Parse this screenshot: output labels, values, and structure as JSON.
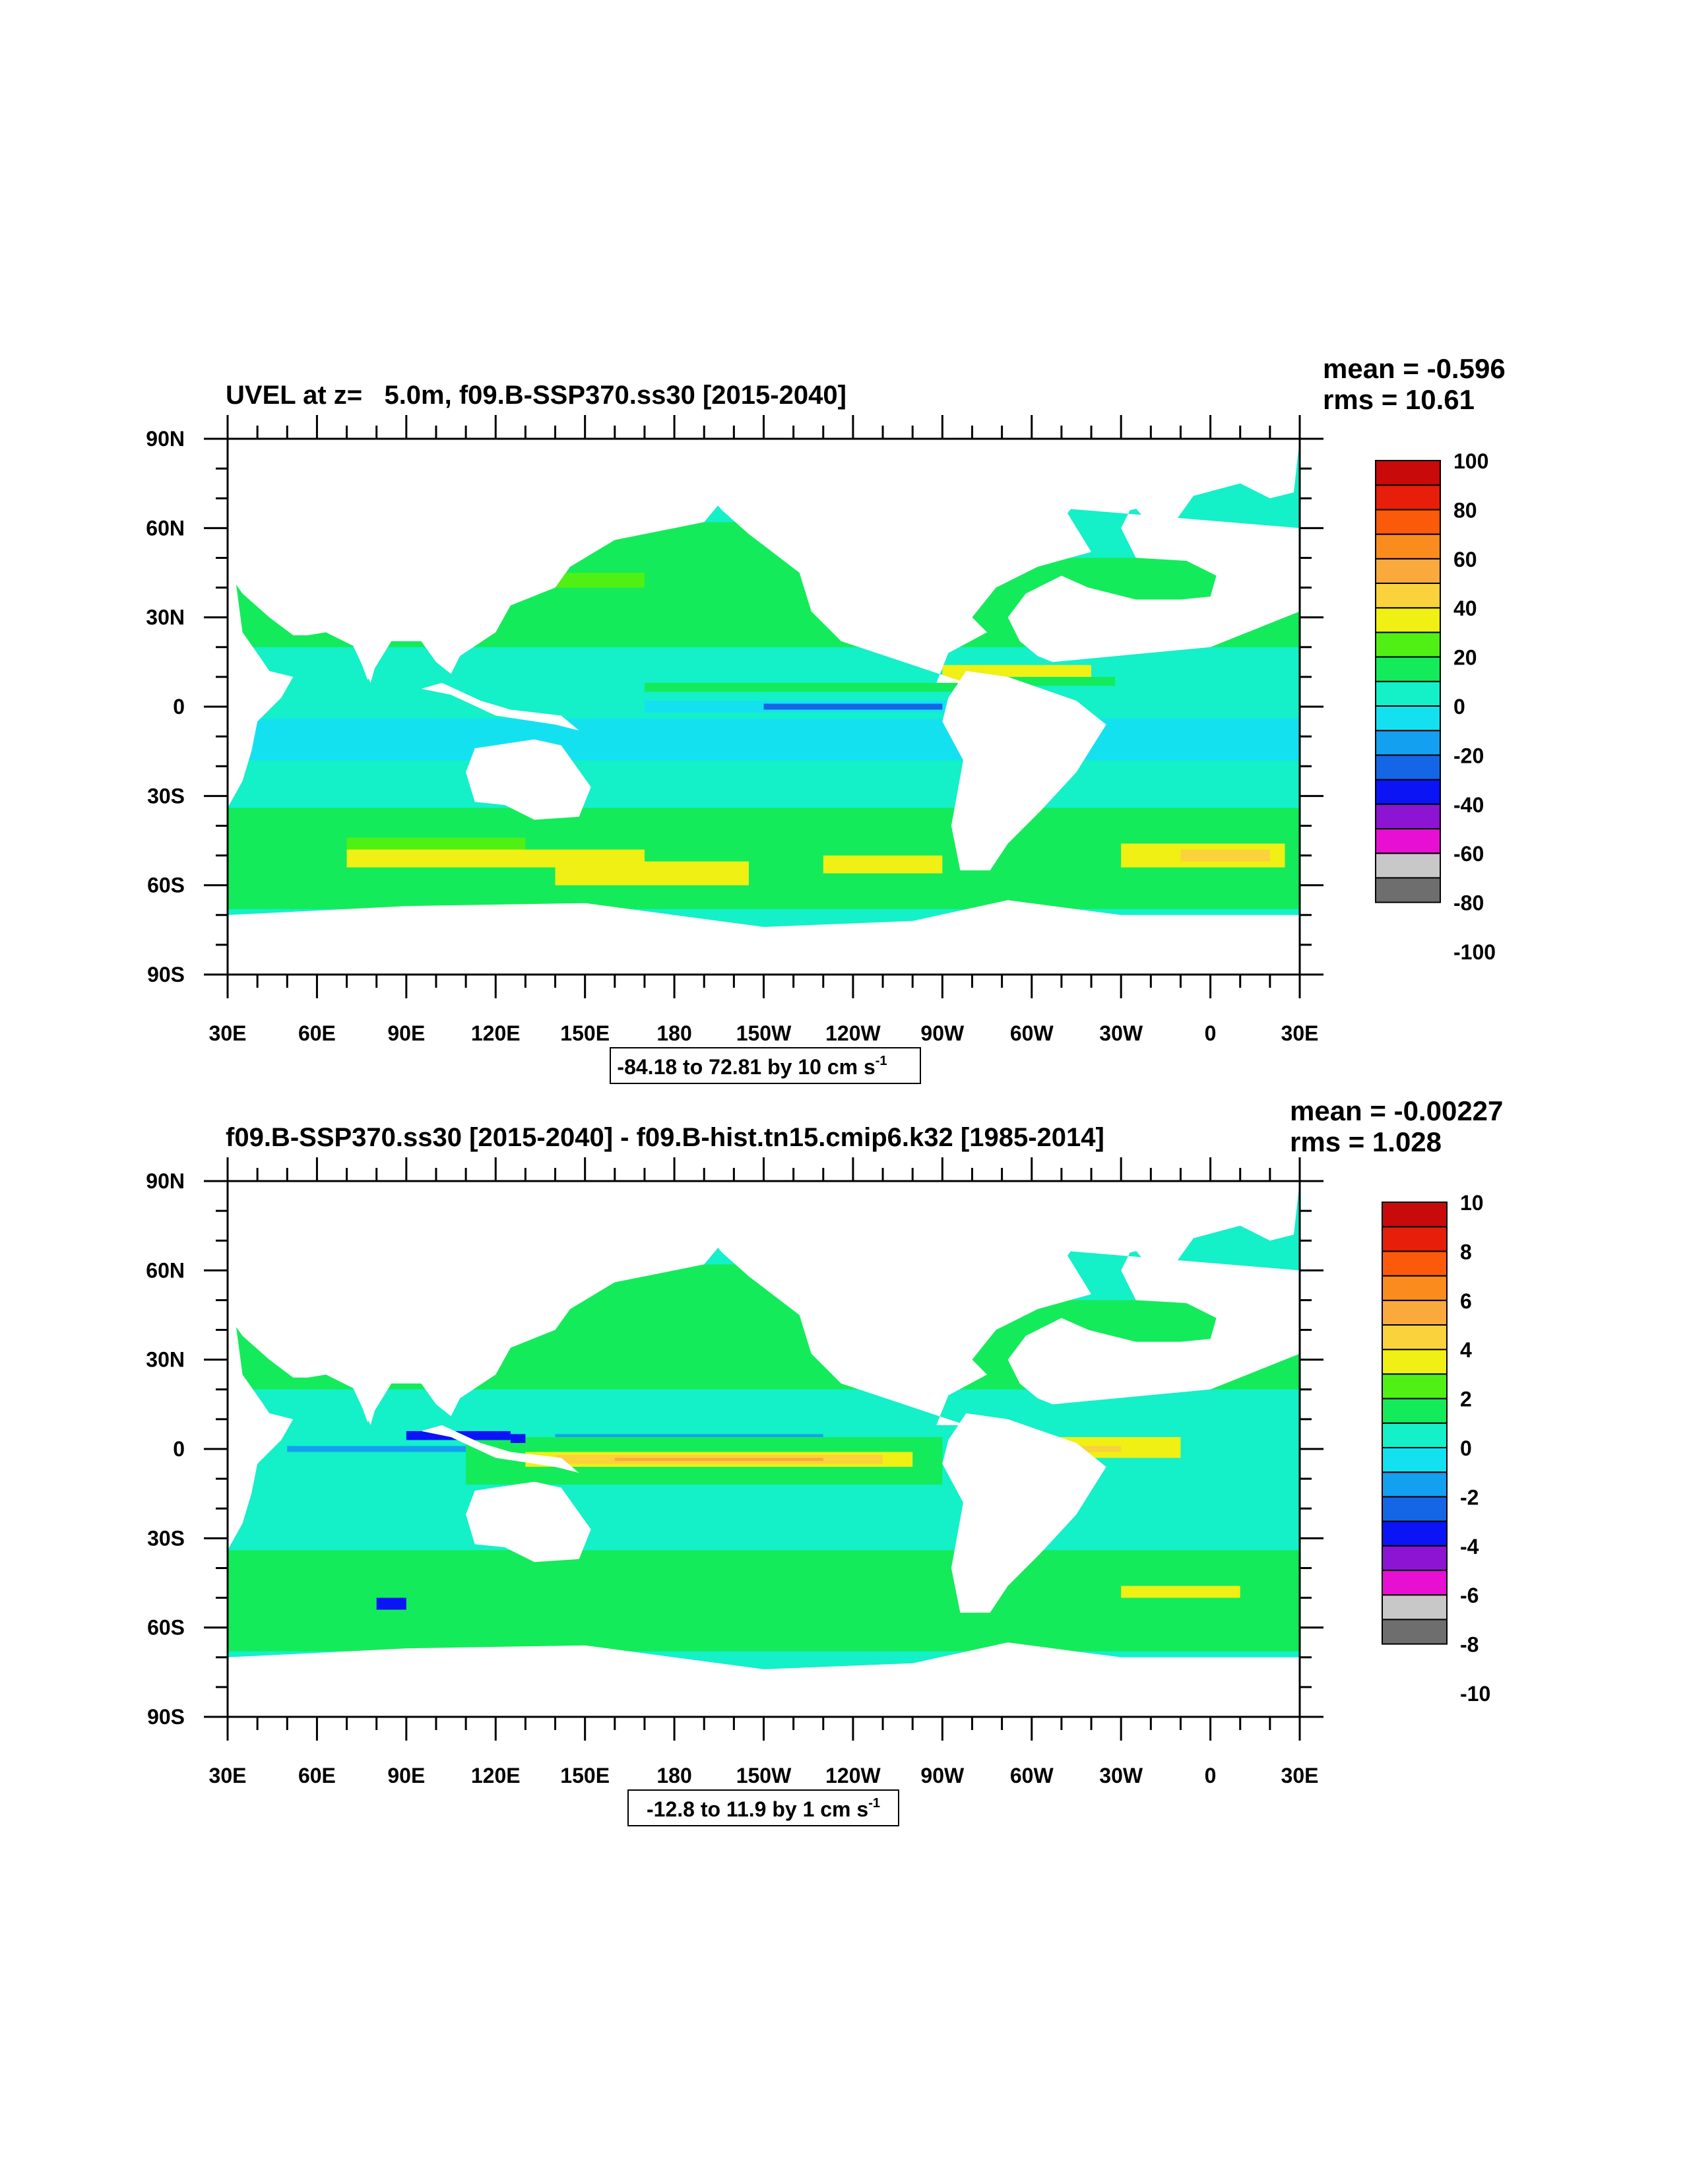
{
  "chart_data": [
    {
      "type": "heatmap",
      "title": "UVEL at z=   5.0m, f09.B-SSP370.ss30 [2015-2040]",
      "stats": {
        "mean": "mean = -0.596",
        "rms": "rms = 10.61"
      },
      "x_tick_labels": [
        "30E",
        "60E",
        "90E",
        "120E",
        "150E",
        "180",
        "150W",
        "120W",
        "90W",
        "60W",
        "30W",
        "0",
        "30E"
      ],
      "y_tick_labels": [
        "90N",
        "60N",
        "30N",
        "0",
        "30S",
        "60S",
        "90S"
      ],
      "xlim": [
        30,
        390
      ],
      "ylim": [
        -90,
        90
      ],
      "colorbar_labels": [
        "100",
        "80",
        "60",
        "40",
        "20",
        "0",
        "-20",
        "-40",
        "-60",
        "-80",
        "-100"
      ],
      "colorbar_range": [
        -100,
        100
      ],
      "range_box": {
        "text": "-84.18 to 72.81 by 10 cm s",
        "exp": "-1"
      }
    },
    {
      "type": "heatmap",
      "title": "f09.B-SSP370.ss30 [2015-2040] - f09.B-hist.tn15.cmip6.k32 [1985-2014]",
      "stats": {
        "mean": "mean = -0.00227",
        "rms": "rms = 1.028"
      },
      "x_tick_labels": [
        "30E",
        "60E",
        "90E",
        "120E",
        "150E",
        "180",
        "150W",
        "120W",
        "90W",
        "60W",
        "30W",
        "0",
        "30E"
      ],
      "y_tick_labels": [
        "90N",
        "60N",
        "30N",
        "0",
        "30S",
        "60S",
        "90S"
      ],
      "xlim": [
        30,
        390
      ],
      "ylim": [
        -90,
        90
      ],
      "colorbar_labels": [
        "10",
        "8",
        "6",
        "4",
        "2",
        "0",
        "-2",
        "-4",
        "-6",
        "-8",
        "-10"
      ],
      "colorbar_range": [
        -10,
        10
      ],
      "range_box": {
        "text": "-12.8 to 11.9 by 1 cm s",
        "exp": "-1"
      }
    }
  ],
  "colors": {
    "levels": [
      "#6e6e6e",
      "#c8c8c8",
      "#e60fd2",
      "#8c14d2",
      "#0a14f5",
      "#1466e6",
      "#14a0f0",
      "#14e1f0",
      "#14f0c8",
      "#14eb5a",
      "#50f014",
      "#f0f014",
      "#fad23c",
      "#faaa3c",
      "#fa8c1e",
      "#fa5a0a",
      "#e61e0a",
      "#c80a0a"
    ],
    "ocean_base": "#14f0c8",
    "ocean_green": "#14eb5a",
    "ocean_cyan": "#14e1f0",
    "land": "#ffffff"
  }
}
